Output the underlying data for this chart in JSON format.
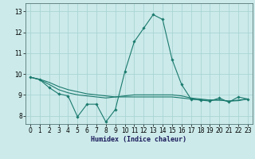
{
  "xlabel": "Humidex (Indice chaleur)",
  "bg_color": "#cceaea",
  "grid_color": "#aad4d4",
  "line_color": "#1a7a6e",
  "xlim": [
    -0.5,
    23.5
  ],
  "ylim": [
    7.6,
    13.4
  ],
  "yticks": [
    8,
    9,
    10,
    11,
    12,
    13
  ],
  "xticks": [
    0,
    1,
    2,
    3,
    4,
    5,
    6,
    7,
    8,
    9,
    10,
    11,
    12,
    13,
    14,
    15,
    16,
    17,
    18,
    19,
    20,
    21,
    22,
    23
  ],
  "line1_x": [
    0,
    1,
    2,
    3,
    4,
    5,
    6,
    7,
    8,
    9,
    10,
    11,
    12,
    13,
    14,
    15,
    16,
    17,
    18,
    19,
    20,
    21,
    22,
    23
  ],
  "line1_y": [
    9.85,
    9.73,
    9.35,
    9.05,
    8.95,
    7.95,
    8.55,
    8.55,
    7.7,
    8.3,
    10.1,
    11.55,
    12.2,
    12.85,
    12.62,
    10.7,
    9.5,
    8.8,
    8.75,
    8.7,
    8.85,
    8.65,
    8.9,
    8.8
  ],
  "line2_x": [
    0,
    1,
    2,
    3,
    4,
    5,
    6,
    7,
    8,
    9,
    10,
    11,
    12,
    13,
    14,
    15,
    16,
    17,
    18,
    19,
    20,
    21,
    22,
    23
  ],
  "line2_y": [
    9.85,
    9.73,
    9.5,
    9.25,
    9.1,
    9.0,
    8.95,
    8.9,
    8.85,
    8.9,
    8.95,
    9.0,
    9.0,
    9.0,
    9.0,
    9.0,
    8.95,
    8.85,
    8.8,
    8.75,
    8.75,
    8.7,
    8.75,
    8.8
  ],
  "line3_x": [
    0,
    1,
    2,
    3,
    4,
    5,
    6,
    7,
    8,
    9,
    10,
    11,
    12,
    13,
    14,
    15,
    16,
    17,
    18,
    19,
    20,
    21,
    22,
    23
  ],
  "line3_y": [
    9.85,
    9.75,
    9.6,
    9.4,
    9.25,
    9.15,
    9.05,
    9.0,
    8.95,
    8.9,
    8.9,
    8.9,
    8.9,
    8.9,
    8.9,
    8.9,
    8.85,
    8.8,
    8.75,
    8.75,
    8.75,
    8.7,
    8.72,
    8.8
  ],
  "label_fontsize": 5.5,
  "tick_fontsize": 5.5,
  "xlabel_fontsize": 6.0,
  "linewidth": 0.8,
  "markersize": 1.8
}
